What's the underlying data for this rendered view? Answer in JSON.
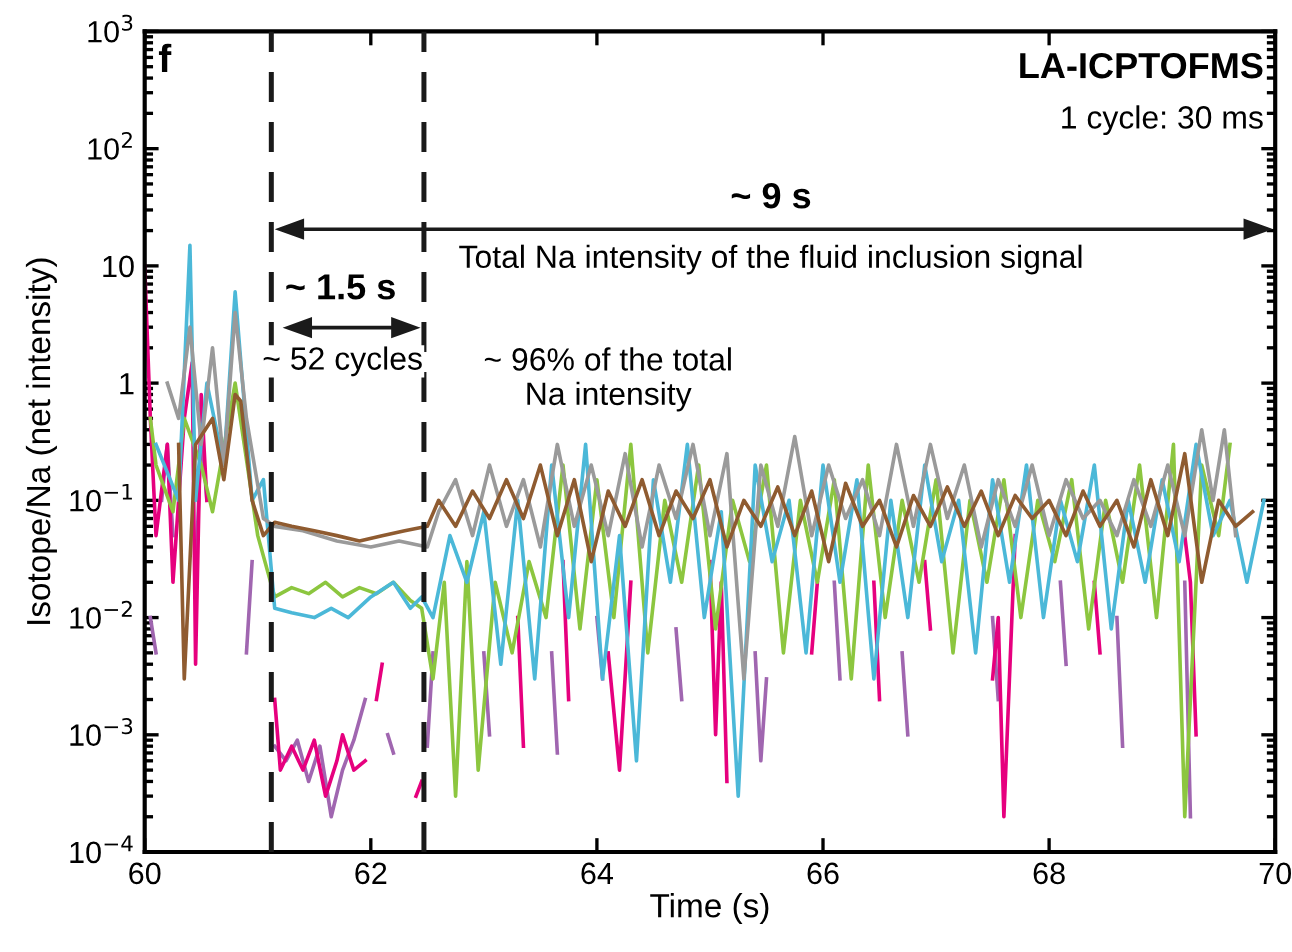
{
  "chart_data": {
    "type": "line",
    "title": "LA-ICPTOFMS",
    "subtitle": "1 cycle: 30 ms",
    "xlabel": "Time (s)",
    "ylabel": "Isotope/Na (net intensity)",
    "xlim": [
      60,
      70
    ],
    "xticks": [
      60,
      62,
      64,
      66,
      68,
      70
    ],
    "log": "y",
    "ylim": [
      0.0001,
      1000
    ],
    "yticks": [
      {
        "value": 0.0001,
        "label": "10$^{−4}$"
      },
      {
        "value": 0.001,
        "label": "10$^{−3}$"
      },
      {
        "value": 0.01,
        "label": "10$^{−2}$"
      },
      {
        "value": 0.1,
        "label": "10$^{−1}$"
      },
      1,
      10,
      {
        "value": 100,
        "label": "10$^{2}$"
      },
      {
        "value": 1000,
        "label": "10$^{3}$"
      }
    ],
    "grid": false,
    "legend": false,
    "marker": "none",
    "line_style": "solid",
    "ref_lines": [
      {
        "axis": "x",
        "value": 61.12,
        "color": "#1a1a1a",
        "line_style": "dashed"
      },
      {
        "axis": "x",
        "value": 62.47,
        "color": "#1a1a1a",
        "line_style": "dashed"
      }
    ],
    "annotations": [
      "f",
      "~ 9 s",
      "Total Na intensity of the fluid inclusion signal",
      "~ 1.5 s",
      "~ 52 cycles",
      "~ 96% of the total\nNa intensity"
    ],
    "series": [
      {
        "color": "#a066b0",
        "x": [
          60.05,
          60.1,
          60.12,
          60.15,
          60.2,
          60.25,
          60.3,
          60.45,
          60.5,
          60.55,
          60.6,
          60.9,
          60.95,
          61.0,
          61.15,
          61.25,
          61.35,
          61.45,
          61.55,
          61.65,
          61.75,
          61.85,
          61.95,
          62.0,
          62.15,
          62.2,
          62.25,
          62.5,
          62.55,
          62.6,
          63.0,
          63.05,
          63.1,
          63.6,
          63.65,
          63.7,
          64.0,
          64.05,
          64.1,
          64.7,
          64.75,
          64.8,
          65.4,
          65.45,
          65.5,
          65.55,
          66.1,
          66.15,
          66.2,
          66.7,
          66.75,
          66.8,
          67.5,
          67.55,
          67.6,
          68.1,
          68.15,
          68.2,
          68.6,
          68.65,
          68.7,
          69.2,
          69.25
        ],
        "values": [
          0.01,
          0.005,
          null,
          0.1,
          0.3,
          0.05,
          null,
          0.02,
          0.4,
          0.1,
          null,
          0.005,
          0.03,
          null,
          0.0008,
          0.0006,
          0.0009,
          0.0004,
          0.0008,
          0.0002,
          0.0005,
          0.0009,
          0.002,
          null,
          0.001,
          0.0007,
          null,
          0.0008,
          0.005,
          null,
          0.005,
          0.001,
          null,
          0.005,
          0.0007,
          null,
          0.01,
          0.003,
          null,
          0.008,
          0.002,
          null,
          0.005,
          0.0006,
          0.003,
          null,
          0.02,
          0.003,
          null,
          0.005,
          0.001,
          null,
          0.01,
          0.002,
          null,
          0.02,
          0.004,
          null,
          0.01,
          0.0008,
          null,
          0.02,
          0.0002
        ]
      },
      {
        "color": "#e6007e",
        "x": [
          60.0,
          60.05,
          60.1,
          60.2,
          60.25,
          60.35,
          60.42,
          60.45,
          60.5,
          60.55,
          60.6,
          61.15,
          61.2,
          61.3,
          61.4,
          61.5,
          61.6,
          61.7,
          61.75,
          61.85,
          61.95,
          62.0,
          62.05,
          62.1,
          62.15,
          62.4,
          62.45,
          62.5,
          63.3,
          63.35,
          63.4,
          63.7,
          63.75,
          63.8,
          64.1,
          64.2,
          64.3,
          64.35,
          65.0,
          65.05,
          65.1,
          65.15,
          65.2,
          65.9,
          65.95,
          66.0,
          66.45,
          66.5,
          66.55,
          66.9,
          66.95,
          67.0,
          67.5,
          67.55,
          67.6,
          67.7,
          67.75,
          68.4,
          68.45,
          68.5,
          69.2,
          69.25,
          69.3
        ],
        "values": [
          10,
          0.5,
          0.05,
          0.3,
          0.02,
          0.5,
          1.5,
          0.004,
          0.8,
          0.1,
          null,
          0.002,
          0.0005,
          0.0008,
          0.0005,
          0.0009,
          0.0003,
          0.0006,
          0.001,
          0.0005,
          0.0006,
          null,
          0.002,
          0.004,
          null,
          0.0003,
          0.0004,
          null,
          0.01,
          0.0008,
          null,
          0.03,
          0.002,
          null,
          0.005,
          0.0005,
          0.02,
          null,
          0.03,
          0.001,
          0.02,
          0.0004,
          null,
          0.005,
          0.02,
          null,
          0.02,
          0.002,
          null,
          0.03,
          0.008,
          null,
          0.003,
          0.01,
          0.0002,
          0.05,
          null,
          0.02,
          0.005,
          null,
          0.05,
          0.02,
          0.001
        ]
      },
      {
        "color": "#8cc63f",
        "x": [
          60.05,
          60.1,
          60.25,
          60.35,
          60.5,
          60.6,
          60.8,
          61.0,
          61.15,
          61.3,
          61.45,
          61.6,
          61.75,
          61.9,
          62.05,
          62.2,
          62.35,
          62.45,
          62.55,
          62.65,
          62.75,
          62.85,
          62.95,
          63.1,
          63.25,
          63.4,
          63.55,
          63.7,
          63.85,
          64.0,
          64.15,
          64.3,
          64.45,
          64.6,
          64.75,
          64.9,
          65.05,
          65.2,
          65.35,
          65.5,
          65.65,
          65.8,
          65.95,
          66.1,
          66.25,
          66.4,
          66.55,
          66.7,
          66.85,
          67.0,
          67.15,
          67.3,
          67.45,
          67.6,
          67.75,
          67.9,
          68.05,
          68.2,
          68.35,
          68.5,
          68.65,
          68.8,
          68.95,
          69.1,
          69.2,
          69.35,
          69.5,
          69.6
        ],
        "values": [
          0.5,
          0.2,
          0.08,
          0.5,
          0.2,
          0.08,
          1,
          0.05,
          0.015,
          0.018,
          0.016,
          0.02,
          0.015,
          0.018,
          0.016,
          0.02,
          0.014,
          0.012,
          0.003,
          0.02,
          0.0003,
          0.03,
          0.0005,
          0.02,
          0.005,
          0.03,
          0.01,
          0.2,
          0.008,
          0.15,
          0.01,
          0.3,
          0.005,
          0.1,
          0.02,
          0.2,
          0.008,
          0.1,
          0.03,
          0.2,
          0.005,
          0.1,
          0.02,
          0.15,
          0.003,
          0.2,
          0.01,
          0.1,
          0.02,
          0.15,
          0.005,
          0.1,
          0.02,
          0.15,
          0.01,
          0.1,
          0.03,
          0.15,
          0.008,
          0.1,
          0.02,
          0.2,
          0.01,
          0.3,
          0.0002,
          0.2,
          0.05,
          0.3
        ]
      },
      {
        "color": "#4bb8d8",
        "x": [
          60.1,
          60.3,
          60.4,
          60.45,
          60.55,
          60.7,
          60.8,
          60.95,
          61.05,
          61.15,
          61.3,
          61.5,
          61.65,
          61.8,
          62.0,
          62.2,
          62.35,
          62.45,
          62.55,
          62.7,
          62.85,
          63.0,
          63.15,
          63.3,
          63.45,
          63.6,
          63.75,
          63.9,
          64.05,
          64.2,
          64.35,
          64.5,
          64.65,
          64.8,
          64.95,
          65.1,
          65.25,
          65.4,
          65.55,
          65.7,
          65.85,
          66.0,
          66.15,
          66.3,
          66.45,
          66.6,
          66.75,
          66.9,
          67.05,
          67.2,
          67.35,
          67.5,
          67.65,
          67.8,
          67.95,
          68.1,
          68.25,
          68.4,
          68.55,
          68.7,
          68.85,
          69.0,
          69.15,
          69.3,
          69.45,
          69.6,
          69.75,
          69.9
        ],
        "values": [
          0.3,
          0.1,
          15,
          0.1,
          1,
          0.2,
          6,
          0.1,
          0.15,
          0.012,
          0.011,
          0.01,
          0.012,
          0.01,
          0.015,
          0.02,
          0.012,
          0.015,
          0.01,
          0.05,
          0.02,
          0.08,
          0.004,
          0.1,
          0.003,
          0.2,
          0.01,
          0.3,
          0.003,
          0.05,
          0.0006,
          0.15,
          0.02,
          0.3,
          0.01,
          0.08,
          0.0003,
          0.2,
          0.03,
          0.1,
          0.005,
          0.2,
          0.02,
          0.15,
          0.003,
          0.1,
          0.01,
          0.2,
          0.03,
          0.1,
          0.005,
          0.15,
          0.02,
          0.2,
          0.01,
          0.1,
          0.03,
          0.2,
          0.008,
          0.1,
          0.02,
          0.15,
          0.03,
          0.3,
          0.05,
          0.1,
          0.02,
          0.1
        ]
      },
      {
        "color": "#9a9a9a",
        "x": [
          60.2,
          60.3,
          60.4,
          60.5,
          60.6,
          60.7,
          60.8,
          60.9,
          61.05,
          61.15,
          61.4,
          61.7,
          62.0,
          62.25,
          62.5,
          62.6,
          62.75,
          62.9,
          63.05,
          63.2,
          63.35,
          63.5,
          63.65,
          63.8,
          63.95,
          64.1,
          64.25,
          64.4,
          64.55,
          64.7,
          64.85,
          65.0,
          65.15,
          65.3,
          65.45,
          65.6,
          65.75,
          65.9,
          66.05,
          66.2,
          66.35,
          66.5,
          66.65,
          66.8,
          66.95,
          67.1,
          67.25,
          67.4,
          67.55,
          67.7,
          67.85,
          68.0,
          68.15,
          68.3,
          68.45,
          68.6,
          68.75,
          68.9,
          69.05,
          69.2,
          69.35,
          69.45,
          69.55,
          69.65
        ],
        "values": [
          1,
          0.5,
          3,
          0.3,
          2,
          0.2,
          4,
          0.5,
          0.07,
          0.06,
          0.055,
          0.045,
          0.04,
          0.045,
          0.04,
          0.08,
          0.15,
          0.05,
          0.2,
          0.06,
          0.15,
          0.04,
          0.3,
          0.06,
          0.2,
          0.05,
          0.25,
          0.04,
          0.2,
          0.07,
          0.3,
          0.05,
          0.25,
          0.003,
          0.2,
          0.06,
          0.35,
          0.05,
          0.2,
          0.07,
          0.15,
          0.05,
          0.3,
          0.06,
          0.3,
          0.07,
          0.2,
          0.04,
          0.15,
          0.06,
          0.2,
          0.05,
          0.15,
          0.07,
          0.1,
          0.05,
          0.15,
          0.06,
          0.2,
          0.05,
          0.4,
          0.1,
          0.4,
          0.05
        ]
      },
      {
        "color": "#8f5b30",
        "x": [
          60.3,
          60.35,
          60.45,
          60.6,
          60.7,
          60.8,
          60.85,
          60.95,
          61.05,
          61.15,
          61.3,
          61.5,
          61.7,
          61.9,
          62.1,
          62.3,
          62.5,
          62.6,
          62.75,
          62.9,
          63.05,
          63.2,
          63.35,
          63.5,
          63.65,
          63.8,
          63.95,
          64.1,
          64.25,
          64.4,
          64.55,
          64.7,
          64.85,
          65.0,
          65.15,
          65.3,
          65.45,
          65.6,
          65.75,
          65.9,
          66.05,
          66.2,
          66.35,
          66.5,
          66.65,
          66.8,
          66.95,
          67.1,
          67.25,
          67.4,
          67.55,
          67.7,
          67.85,
          68.0,
          68.15,
          68.3,
          68.45,
          68.6,
          68.75,
          68.9,
          69.05,
          69.2,
          69.35,
          69.5,
          69.65,
          69.8
        ],
        "values": [
          0.3,
          0.003,
          0.3,
          0.5,
          0.15,
          0.8,
          0.7,
          0.1,
          0.05,
          0.065,
          0.06,
          0.055,
          0.05,
          0.045,
          0.05,
          0.055,
          0.06,
          0.1,
          0.06,
          0.12,
          0.07,
          0.15,
          0.07,
          0.2,
          0.05,
          0.15,
          0.03,
          0.12,
          0.06,
          0.15,
          0.05,
          0.12,
          0.07,
          0.15,
          0.04,
          0.1,
          0.06,
          0.13,
          0.05,
          0.12,
          0.03,
          0.14,
          0.06,
          0.1,
          0.04,
          0.11,
          0.06,
          0.13,
          0.06,
          0.12,
          0.05,
          0.11,
          0.07,
          0.1,
          0.05,
          0.12,
          0.06,
          0.1,
          0.04,
          0.15,
          0.05,
          0.25,
          0.02,
          0.1,
          0.06,
          0.08
        ]
      }
    ]
  }
}
